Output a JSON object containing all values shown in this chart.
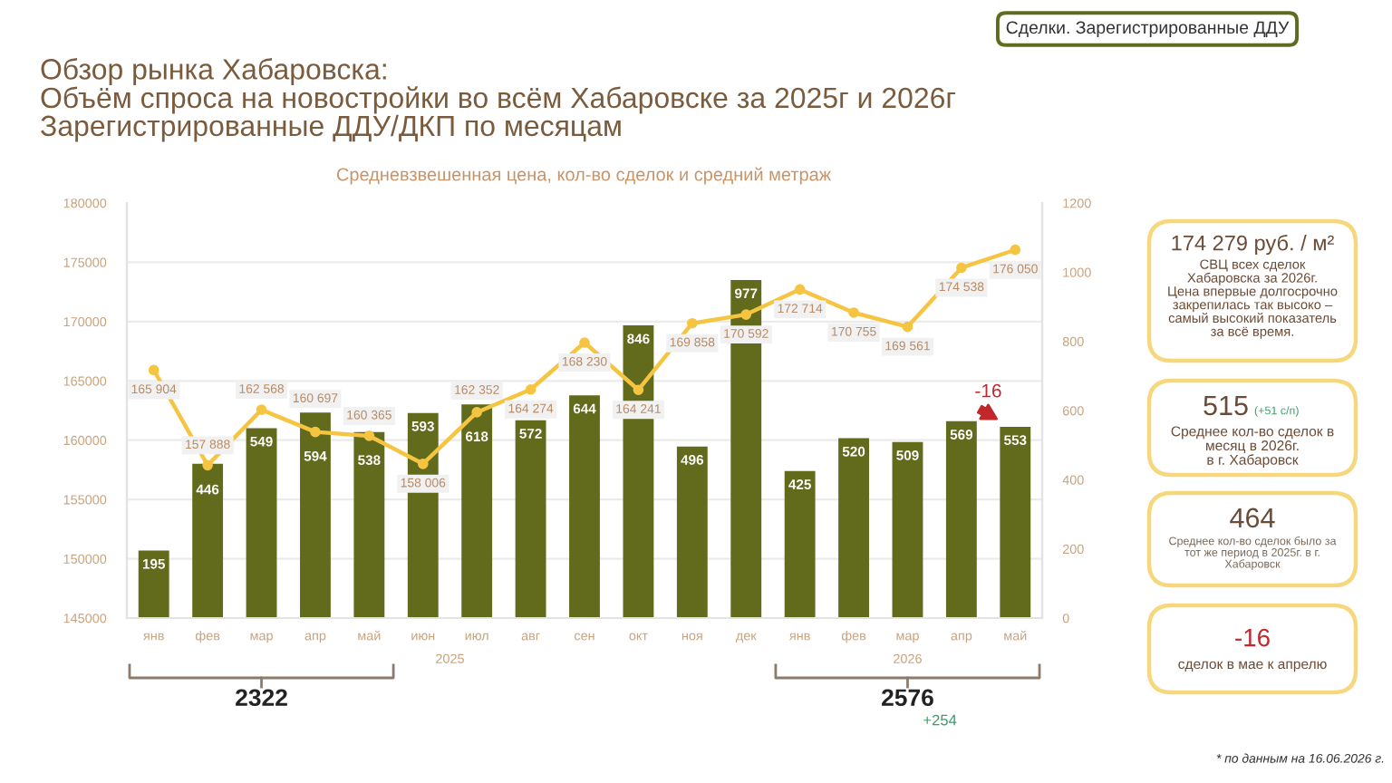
{
  "chart_data": {
    "type": "bar",
    "title": "Обзор рынка Хабаровска:\nОбъём спроса на новостройки во всём Хабаровске за 2025г и 2026г\nЗарегистрированные ДДУ/ДКП по месяцам",
    "subtitle": "Средневзвешенная цена, кол-во сделок и средний метраж",
    "categories": [
      "янв",
      "фев",
      "мар",
      "апр",
      "май",
      "июн",
      "июл",
      "авг",
      "сен",
      "окт",
      "ноя",
      "дек",
      "янв",
      "фев",
      "мар",
      "апр",
      "май"
    ],
    "series": [
      {
        "axis": "y2",
        "color": "#626a1c",
        "values": [
          195,
          446,
          549,
          594,
          538,
          593,
          618,
          572,
          644,
          846,
          496,
          977,
          425,
          520,
          509,
          569,
          553
        ],
        "value_labels": [
          "195",
          "446",
          "549",
          "594",
          "538",
          "593",
          "618",
          "572",
          "644",
          "846",
          "496",
          "977",
          "425",
          "520",
          "509",
          "569",
          "553"
        ]
      },
      {
        "type": "line",
        "color": "#f5c542",
        "values": [
          165904,
          157888,
          162568,
          160697,
          160365,
          158006,
          162352,
          164274,
          168230,
          164241,
          169858,
          170592,
          172714,
          170755,
          169561,
          174538,
          176050
        ],
        "value_labels": [
          "165 904",
          "157 888",
          "162 568",
          "160 697",
          "160 365",
          "158 006",
          "162 352",
          "164 274",
          "168 230",
          "164 241",
          "169 858",
          "170 592",
          "172 714",
          "170 755",
          "169 561",
          "174 538",
          "176 050"
        ]
      }
    ],
    "ylim": [
      145000,
      180000
    ],
    "yticks": [
      145000,
      150000,
      155000,
      160000,
      165000,
      170000,
      175000,
      180000
    ],
    "y2lim": [
      0,
      1200
    ],
    "y2ticks": [
      0,
      200,
      400,
      600,
      800,
      1000,
      1200
    ],
    "grid": "y",
    "marker": "circle",
    "annotations": [
      "Сделки. Зарегистрированные ДДУ",
      "2025",
      "2026",
      "2322",
      "2576",
      "+254",
      "-16",
      "174 279 руб. / м²",
      "СВЦ всех сделок\nХабаровска за 2026г.\nЦена впервые долгосрочно\nзакрепилась так высоко –\nсамый высокий показатель\nза всё время.",
      "515",
      "(+51 с/п)",
      "Среднее кол-во сделок в\nмесяц в 2026г.\nв г. Хабаровск",
      "464",
      "Среднее кол-во сделок было за\nтот же период в 2025г. в г.\nХабаровск",
      "-16",
      "сделок в мае к апрелю",
      "* по данным на 16.06.2026 г."
    ]
  }
}
